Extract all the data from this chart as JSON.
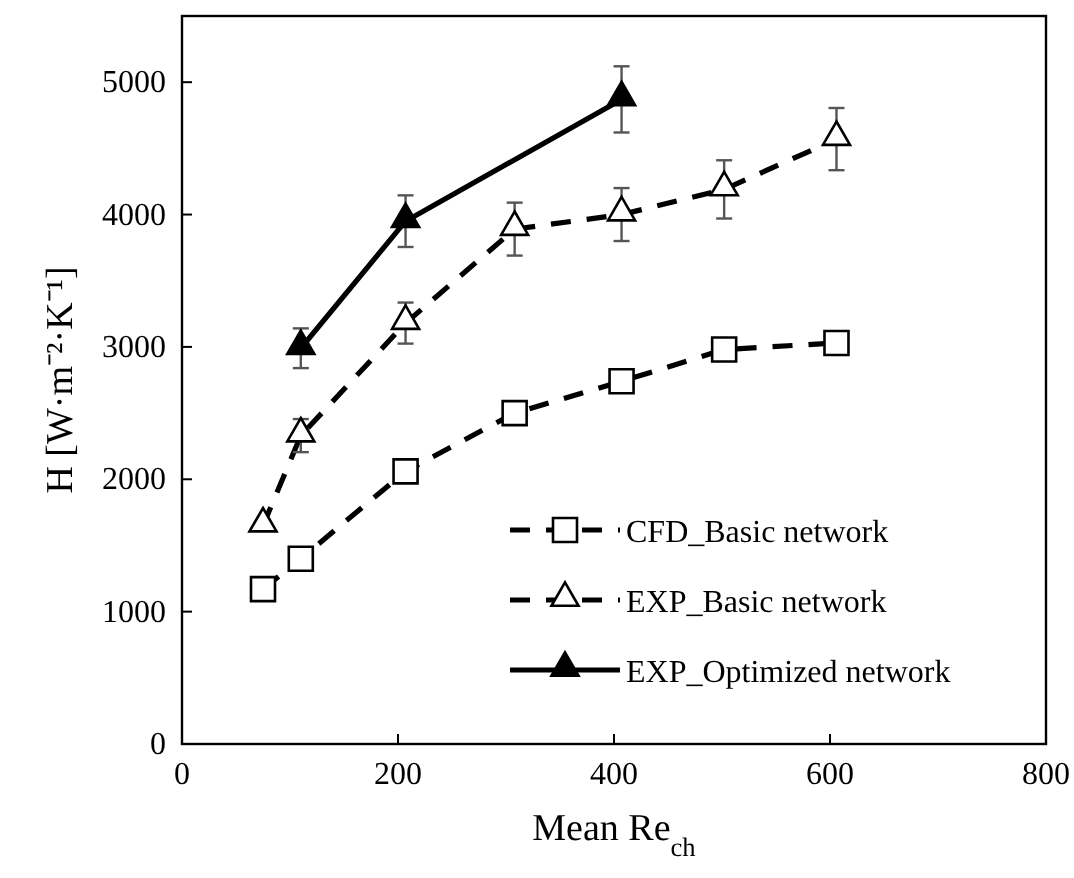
{
  "chart_data": {
    "type": "line",
    "xlabel": "Mean Re$_{ch}$",
    "ylabel": "H [W·m⁻²·K⁻¹]",
    "xlim": [
      0,
      800
    ],
    "xticks": [
      0,
      200,
      400,
      600,
      800
    ],
    "ylim": [
      0,
      5500
    ],
    "yticks": [
      0,
      1000,
      2000,
      3000,
      4000,
      5000
    ],
    "grid": false,
    "legend": "bottom right",
    "series": [
      {
        "name": "CFD_Basic network",
        "color": "#000000",
        "marker": "square",
        "line_style": "dashed",
        "x": [
          75,
          110,
          207,
          308,
          407,
          502,
          606
        ],
        "values": [
          1170,
          1400,
          2060,
          2500,
          2740,
          2980,
          3030
        ]
      },
      {
        "name": "EXP_Basic network",
        "color": "#000000",
        "marker": "triangle",
        "line_style": "dashed",
        "x": [
          75,
          110,
          207,
          308,
          407,
          502,
          606
        ],
        "values": [
          1650,
          2330,
          3180,
          3890,
          4000,
          4190,
          4570
        ],
        "errors": [
          null,
          125,
          155,
          200,
          200,
          220,
          235
        ]
      },
      {
        "name": "EXP_Optimized network",
        "color": "#000000",
        "marker": "triangle",
        "line_style": "solid",
        "x": [
          110,
          207,
          407
        ],
        "values": [
          2990,
          3950,
          4870
        ],
        "errors": [
          150,
          195,
          250
        ]
      }
    ]
  }
}
